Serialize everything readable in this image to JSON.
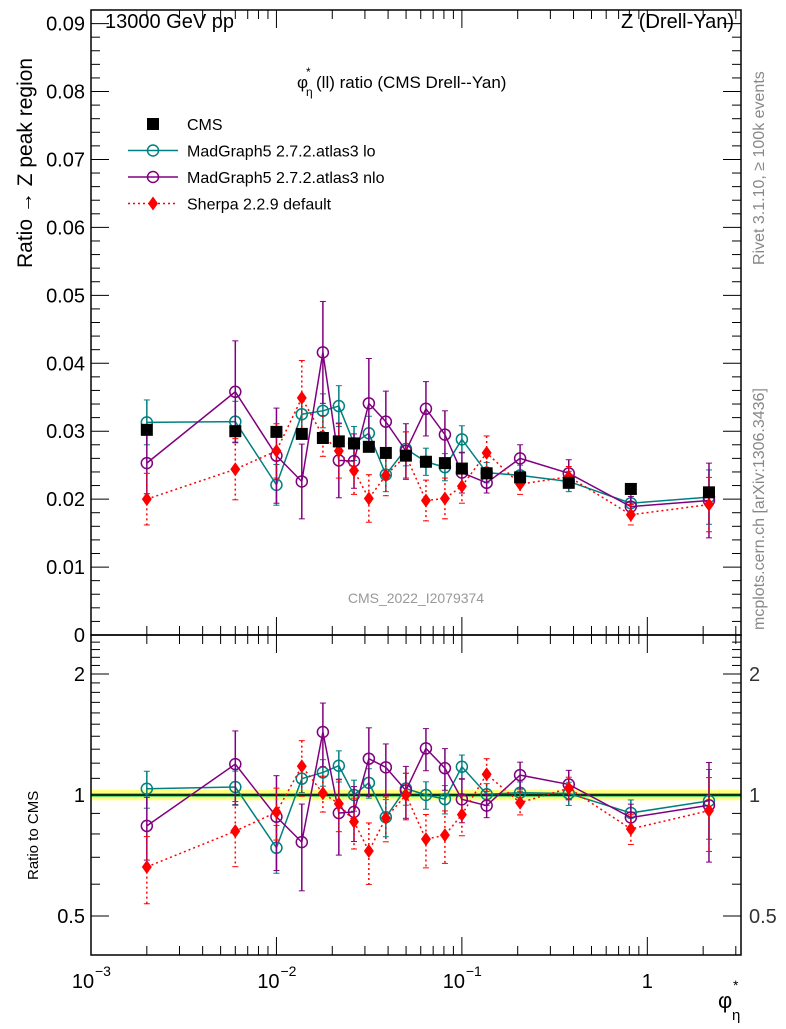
{
  "header": {
    "left": "13000 GeV pp",
    "right": "Z (Drell-Yan)"
  },
  "side_labels": {
    "rivet": "Rivet 3.1.10, ≥ 100k events",
    "mcplots": "mcplots.cern.ch [arXiv:1306.3436]"
  },
  "chart_data": {
    "type": "scatter",
    "title": "φ*η(ll) ratio (CMS Drell--Yan)",
    "title_parts": {
      "phi": "φ",
      "star": "*",
      "eta": "η",
      "rest": "(ll) ratio (CMS Drell--Yan)"
    },
    "watermark": "CMS_2022_I2079374",
    "ylabel": "Ratio → Z peak region",
    "ratio_ylabel": "Ratio to CMS",
    "xlabel": {
      "phi": "φ",
      "star": "*",
      "eta": "η"
    },
    "xscale": "log",
    "xlim": [
      0.001,
      3.2
    ],
    "ylim": [
      0,
      0.092
    ],
    "ratio_ylim": [
      0.4,
      2.5
    ],
    "ratio_yscale": "log",
    "yticks": [
      "0",
      "0.01",
      "0.02",
      "0.03",
      "0.04",
      "0.05",
      "0.06",
      "0.07",
      "0.08",
      "0.09"
    ],
    "ratio_yticks": [
      "0.5",
      "1",
      "2"
    ],
    "xticks": [
      {
        "base": "10",
        "exp": "−3"
      },
      {
        "base": "10",
        "exp": "−2"
      },
      {
        "base": "10",
        "exp": "−1"
      },
      {
        "base": "1",
        "exp": ""
      }
    ],
    "legend_position": "top-left",
    "x": [
      0.002,
      0.006,
      0.01,
      0.0137,
      0.0178,
      0.0217,
      0.0262,
      0.0315,
      0.0389,
      0.0499,
      0.064,
      0.081,
      0.1,
      0.136,
      0.206,
      0.377,
      0.815,
      2.15
    ],
    "series": [
      {
        "name": "CMS",
        "color": "#000000",
        "marker": "square",
        "line": "none",
        "values": [
          0.0302,
          0.03,
          0.0299,
          0.0296,
          0.029,
          0.0285,
          0.0282,
          0.0277,
          0.0268,
          0.0264,
          0.0255,
          0.0253,
          0.0245,
          0.0238,
          0.0232,
          0.0224,
          0.0215,
          0.021
        ],
        "errors": [
          0.0005,
          0.0005,
          0.0005,
          0.0005,
          0.0005,
          0.0005,
          0.0005,
          0.0005,
          0.0005,
          0.0005,
          0.0005,
          0.0005,
          0.0005,
          0.0005,
          0.0005,
          0.0005,
          0.0005,
          0.0005
        ]
      },
      {
        "name": "MadGraph5 2.7.2.atlas3 lo",
        "color": "#008080",
        "marker": "open-circle",
        "line": "solid",
        "values": [
          0.0313,
          0.0314,
          0.0221,
          0.0325,
          0.033,
          0.0337,
          0.0282,
          0.0297,
          0.0236,
          0.0274,
          0.0255,
          0.0247,
          0.0288,
          0.0239,
          0.0235,
          0.0226,
          0.0194,
          0.0203
        ],
        "errors": [
          0.0033,
          0.003,
          0.003,
          0.0025,
          0.0025,
          0.003,
          0.0025,
          0.0025,
          0.0025,
          0.0025,
          0.002,
          0.002,
          0.002,
          0.0015,
          0.0015,
          0.0015,
          0.0015,
          0.004
        ]
      },
      {
        "name": "MadGraph5 2.7.2.atlas3 nlo",
        "color": "#800080",
        "marker": "open-circle",
        "line": "solid",
        "values": [
          0.0253,
          0.0358,
          0.0264,
          0.0226,
          0.0416,
          0.0257,
          0.0256,
          0.0341,
          0.0314,
          0.0271,
          0.0333,
          0.0295,
          0.0239,
          0.0224,
          0.026,
          0.0238,
          0.0189,
          0.0198
        ],
        "errors": [
          0.0045,
          0.0075,
          0.007,
          0.0055,
          0.0075,
          0.0055,
          0.004,
          0.0066,
          0.0045,
          0.004,
          0.004,
          0.0035,
          0.003,
          0.0015,
          0.002,
          0.002,
          0.0015,
          0.0055
        ]
      },
      {
        "name": "Sherpa 2.2.9 default",
        "color": "#ff0000",
        "marker": "diamond",
        "line": "dotted",
        "values": [
          0.02,
          0.0244,
          0.0271,
          0.0349,
          0.0293,
          0.0271,
          0.0242,
          0.0201,
          0.0235,
          0.0264,
          0.0198,
          0.0201,
          0.0219,
          0.0268,
          0.0222,
          0.0233,
          0.0177,
          0.0192
        ],
        "errors": [
          0.0038,
          0.0045,
          0.004,
          0.0055,
          0.003,
          0.004,
          0.0035,
          0.0035,
          0.003,
          0.0035,
          0.003,
          0.003,
          0.0025,
          0.0025,
          0.0015,
          0.0015,
          0.0015,
          0.004
        ]
      }
    ],
    "ratio_band": {
      "inner": 0.01,
      "outer": 0.03,
      "inner_color": "#33cc66",
      "outer_color": "#ffff80"
    }
  }
}
